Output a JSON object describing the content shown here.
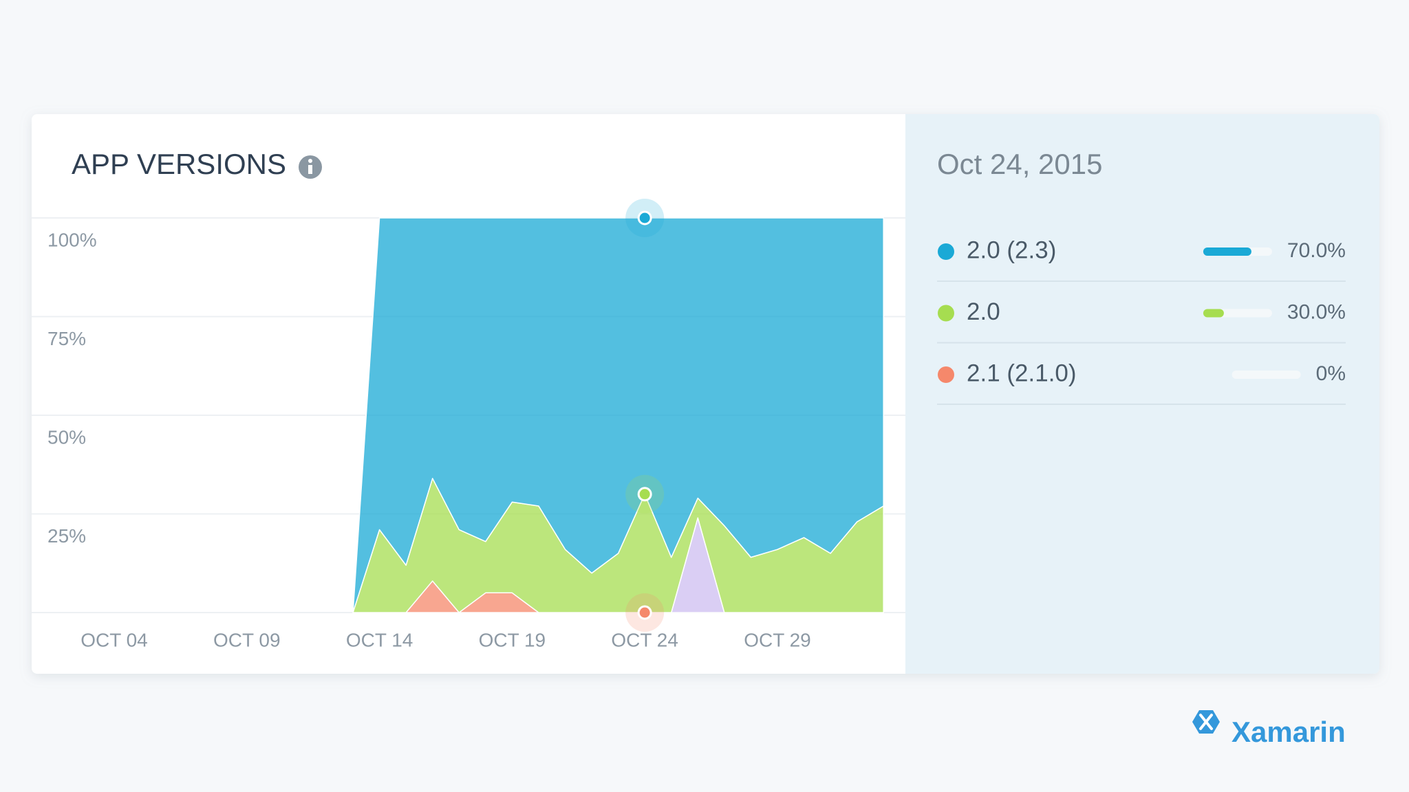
{
  "chart_data": {
    "type": "stacked_area",
    "title": "APP VERSIONS",
    "categories": [
      null,
      null,
      null,
      "OCT 04",
      null,
      null,
      null,
      null,
      "OCT 09",
      null,
      null,
      null,
      null,
      "OCT 14",
      null,
      null,
      null,
      null,
      "OCT 19",
      null,
      null,
      null,
      null,
      "OCT 24",
      null,
      null,
      null,
      null,
      "OCT 29",
      null,
      null,
      null,
      null
    ],
    "series": [
      {
        "name": "2.0 (2.3)",
        "color": "#1aa9d6",
        "values": [
          null,
          null,
          null,
          null,
          null,
          null,
          null,
          null,
          null,
          null,
          null,
          null,
          0,
          79,
          88,
          66,
          79,
          82,
          72,
          73,
          84,
          90,
          85,
          70,
          86,
          71,
          78,
          86,
          84,
          81,
          85,
          77,
          73
        ]
      },
      {
        "name": "2.0",
        "color": "#a6dd50",
        "values": [
          null,
          null,
          null,
          null,
          null,
          null,
          null,
          null,
          null,
          null,
          null,
          null,
          0,
          21,
          12,
          26,
          21,
          13,
          23,
          27,
          16,
          10,
          15,
          30,
          14,
          5,
          22,
          14,
          16,
          19,
          15,
          23,
          27
        ]
      },
      {
        "name": "2.1 (2.1.0)",
        "color": "#f5886b",
        "values": [
          null,
          null,
          null,
          null,
          null,
          null,
          null,
          null,
          null,
          null,
          null,
          null,
          0,
          0,
          0,
          8,
          0,
          5,
          5,
          0,
          0,
          0,
          0,
          0,
          0,
          0,
          0,
          0,
          0,
          0,
          0,
          0,
          0
        ]
      },
      {
        "color": "#cdbdf0",
        "values": [
          null,
          null,
          null,
          null,
          null,
          null,
          null,
          null,
          null,
          null,
          null,
          null,
          0,
          0,
          0,
          0,
          0,
          0,
          0,
          0,
          0,
          0,
          0,
          0,
          0,
          24,
          0,
          0,
          0,
          0,
          0,
          0,
          0
        ]
      }
    ],
    "ylim": [
      0,
      100
    ],
    "yticks": [
      {
        "value": 25,
        "label": "25%"
      },
      {
        "value": 50,
        "label": "50%"
      },
      {
        "value": 75,
        "label": "75%"
      },
      {
        "value": 100,
        "label": "100%"
      }
    ],
    "grid": true,
    "selected": 23
  },
  "panel": {
    "date": "Oct 24, 2015",
    "rows": [
      {
        "value": 70,
        "label": "70.0%"
      },
      {
        "value": 30,
        "label": "30.0%"
      },
      {
        "value": 0,
        "label": "0%"
      }
    ]
  },
  "brand": "Xamarin"
}
